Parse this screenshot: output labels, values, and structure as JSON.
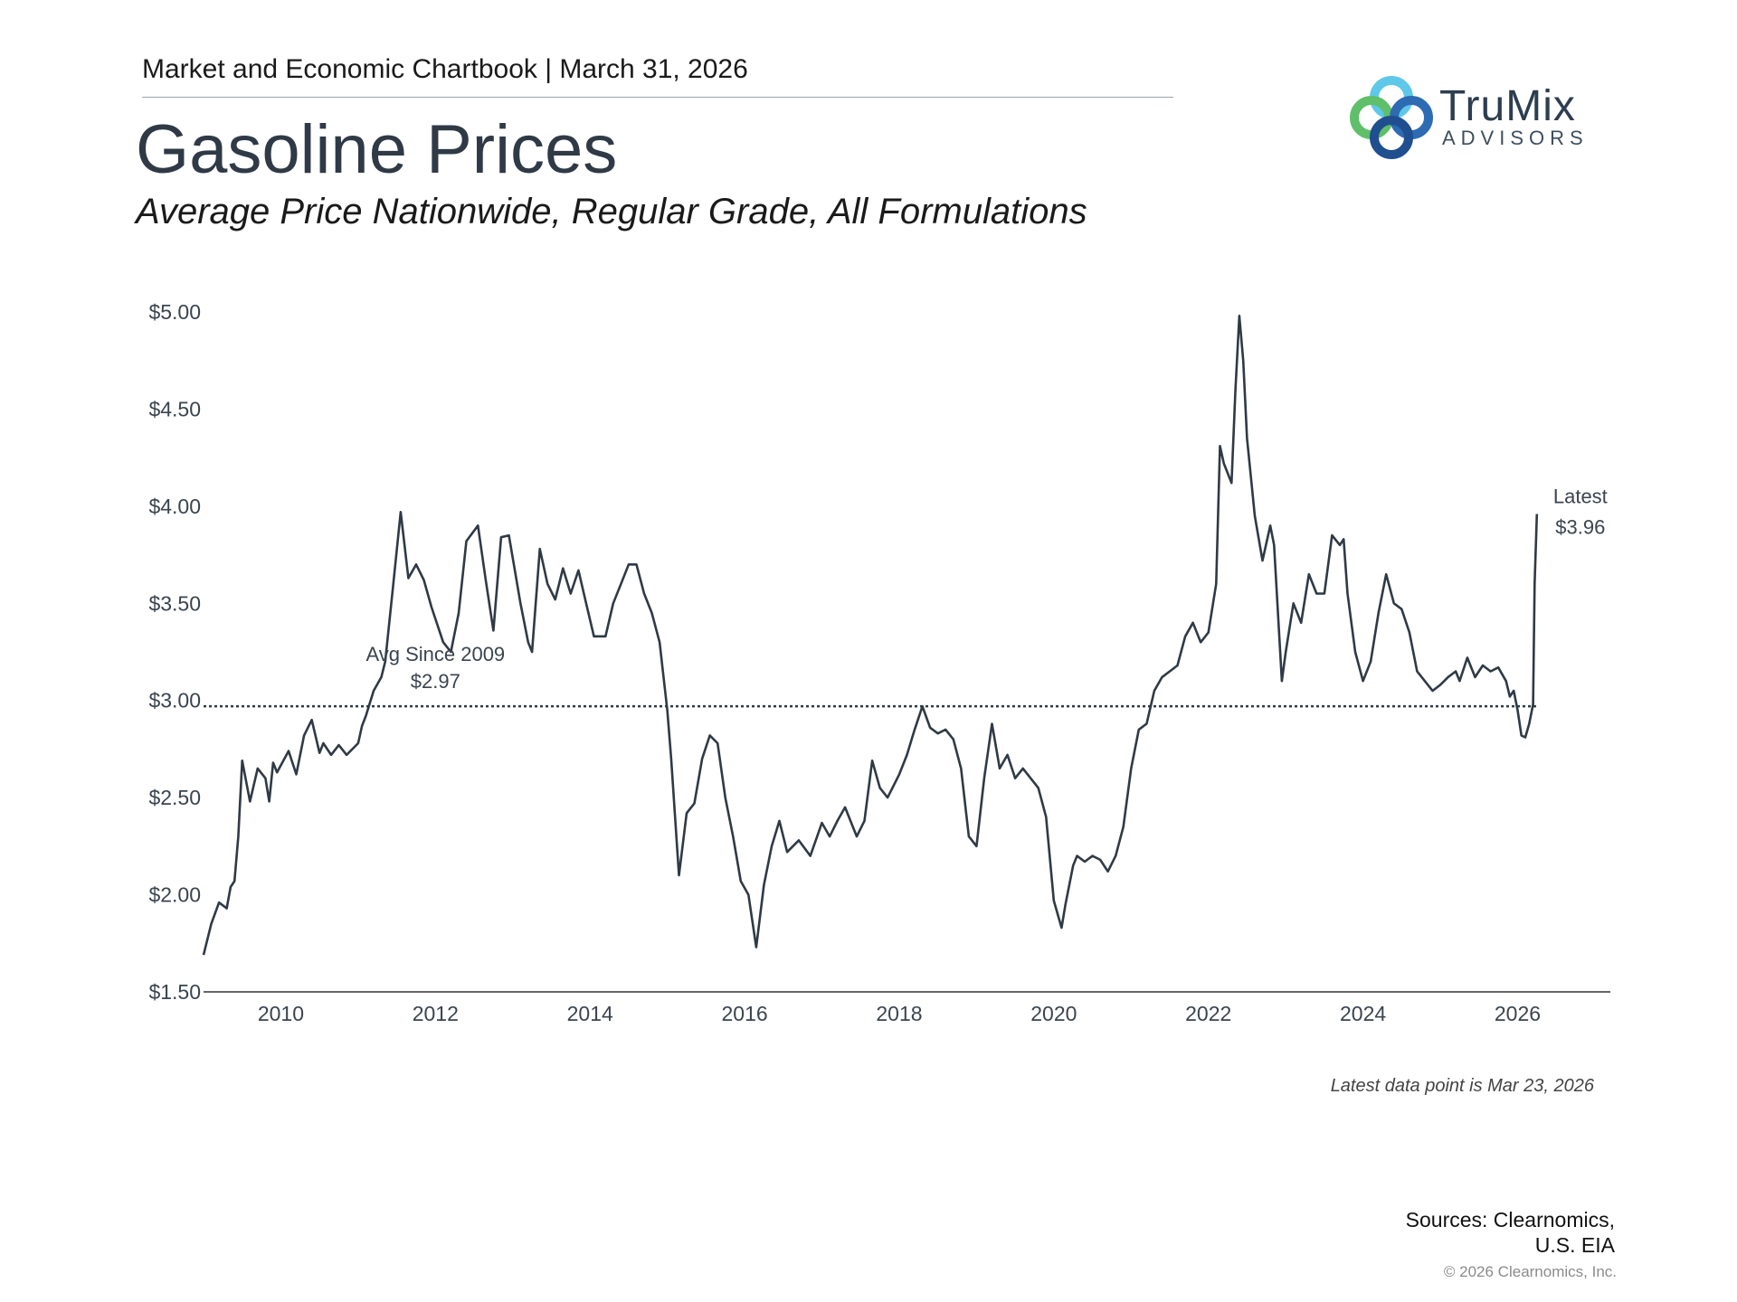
{
  "header": {
    "chartbook": "Market and Economic Chartbook | March 31, 2026",
    "title": "Gasoline Prices",
    "subtitle": "Average Price Nationwide, Regular Grade, All Formulations"
  },
  "logo": {
    "name": "TruMix",
    "sub": "ADVISORS"
  },
  "footer": {
    "latest_note": "Latest data point is Mar 23, 2026",
    "sources_line1": "Sources: Clearnomics,",
    "sources_line2": "U.S. EIA",
    "copyright": "© 2026 Clearnomics, Inc."
  },
  "colors": {
    "line": "#2f3a46",
    "axis": "#333333",
    "avg_line": "#2f3a46",
    "text": "#3a4450"
  },
  "chart_data": {
    "type": "line",
    "title": "Gasoline Prices",
    "subtitle": "Average Price Nationwide, Regular Grade, All Formulations",
    "xlabel": "",
    "ylabel": "",
    "xlim": [
      2009.0,
      2027.2
    ],
    "ylim": [
      1.5,
      5.0
    ],
    "x_ticks": [
      2010,
      2012,
      2014,
      2016,
      2018,
      2020,
      2022,
      2024,
      2026
    ],
    "y_ticks": [
      1.5,
      2.0,
      2.5,
      3.0,
      3.5,
      4.0,
      4.5,
      5.0
    ],
    "y_tick_labels": [
      "$1.50",
      "$2.00",
      "$2.50",
      "$3.00",
      "$3.50",
      "$4.00",
      "$4.50",
      "$5.00"
    ],
    "grid": false,
    "average": {
      "value": 2.97,
      "label_line1": "Avg Since 2009",
      "label_line2": "$2.97",
      "style": "dotted"
    },
    "latest": {
      "value": 3.96,
      "label_line1": "Latest",
      "label_line2": "$3.96"
    },
    "series": [
      {
        "x": [
          2009.0,
          2009.1,
          2009.2,
          2009.3,
          2009.35,
          2009.4,
          2009.45,
          2009.5,
          2009.6,
          2009.7,
          2009.8,
          2009.85,
          2009.9,
          2009.95,
          2010.1,
          2010.2,
          2010.3,
          2010.4,
          2010.5,
          2010.55,
          2010.65,
          2010.75,
          2010.85,
          2011.0,
          2011.05,
          2011.1,
          2011.2,
          2011.3,
          2011.35,
          2011.45,
          2011.55,
          2011.65,
          2011.75,
          2011.85,
          2011.95,
          2012.1,
          2012.2,
          2012.3,
          2012.4,
          2012.55,
          2012.65,
          2012.75,
          2012.85,
          2012.95,
          2013.1,
          2013.2,
          2013.25,
          2013.35,
          2013.45,
          2013.55,
          2013.65,
          2013.75,
          2013.85,
          2013.95,
          2014.05,
          2014.2,
          2014.3,
          2014.4,
          2014.5,
          2014.6,
          2014.7,
          2014.8,
          2014.9,
          2015.0,
          2015.05,
          2015.15,
          2015.25,
          2015.35,
          2015.45,
          2015.55,
          2015.65,
          2015.75,
          2015.85,
          2015.95,
          2016.05,
          2016.15,
          2016.25,
          2016.35,
          2016.45,
          2016.55,
          2016.7,
          2016.85,
          2017.0,
          2017.1,
          2017.2,
          2017.3,
          2017.45,
          2017.55,
          2017.65,
          2017.75,
          2017.85,
          2018.0,
          2018.1,
          2018.2,
          2018.3,
          2018.4,
          2018.5,
          2018.6,
          2018.7,
          2018.8,
          2018.9,
          2019.0,
          2019.1,
          2019.2,
          2019.3,
          2019.4,
          2019.5,
          2019.6,
          2019.7,
          2019.8,
          2019.9,
          2020.0,
          2020.1,
          2020.15,
          2020.25,
          2020.3,
          2020.4,
          2020.5,
          2020.6,
          2020.7,
          2020.8,
          2020.9,
          2021.0,
          2021.1,
          2021.2,
          2021.3,
          2021.4,
          2021.5,
          2021.6,
          2021.7,
          2021.8,
          2021.9,
          2022.0,
          2022.1,
          2022.15,
          2022.2,
          2022.3,
          2022.35,
          2022.4,
          2022.45,
          2022.5,
          2022.6,
          2022.7,
          2022.8,
          2022.85,
          2022.9,
          2022.95,
          2023.0,
          2023.1,
          2023.2,
          2023.3,
          2023.4,
          2023.5,
          2023.6,
          2023.7,
          2023.75,
          2023.8,
          2023.9,
          2024.0,
          2024.1,
          2024.2,
          2024.3,
          2024.4,
          2024.5,
          2024.6,
          2024.7,
          2024.8,
          2024.9,
          2025.0,
          2025.1,
          2025.2,
          2025.25,
          2025.35,
          2025.45,
          2025.55,
          2025.65,
          2025.75,
          2025.85,
          2025.9,
          2025.95,
          2026.0,
          2026.05,
          2026.1,
          2026.15,
          2026.2,
          2026.22,
          2026.25
        ],
        "y": [
          1.69,
          1.85,
          1.96,
          1.93,
          2.04,
          2.07,
          2.3,
          2.69,
          2.48,
          2.65,
          2.6,
          2.48,
          2.68,
          2.63,
          2.74,
          2.62,
          2.82,
          2.9,
          2.73,
          2.78,
          2.72,
          2.77,
          2.72,
          2.78,
          2.87,
          2.92,
          3.05,
          3.12,
          3.2,
          3.58,
          3.97,
          3.63,
          3.7,
          3.62,
          3.48,
          3.3,
          3.25,
          3.45,
          3.82,
          3.9,
          3.62,
          3.36,
          3.84,
          3.85,
          3.5,
          3.3,
          3.25,
          3.78,
          3.6,
          3.52,
          3.68,
          3.55,
          3.67,
          3.5,
          3.33,
          3.33,
          3.5,
          3.6,
          3.7,
          3.7,
          3.55,
          3.45,
          3.3,
          2.95,
          2.7,
          2.1,
          2.42,
          2.47,
          2.7,
          2.82,
          2.78,
          2.5,
          2.3,
          2.07,
          2.0,
          1.73,
          2.05,
          2.25,
          2.38,
          2.22,
          2.28,
          2.2,
          2.37,
          2.3,
          2.38,
          2.45,
          2.3,
          2.38,
          2.69,
          2.55,
          2.5,
          2.62,
          2.72,
          2.85,
          2.97,
          2.86,
          2.83,
          2.85,
          2.8,
          2.65,
          2.3,
          2.25,
          2.6,
          2.88,
          2.65,
          2.72,
          2.6,
          2.65,
          2.6,
          2.55,
          2.4,
          1.97,
          1.83,
          1.95,
          2.15,
          2.2,
          2.17,
          2.2,
          2.18,
          2.12,
          2.2,
          2.35,
          2.65,
          2.85,
          2.88,
          3.05,
          3.12,
          3.15,
          3.18,
          3.33,
          3.4,
          3.3,
          3.35,
          3.6,
          4.31,
          4.22,
          4.12,
          4.6,
          4.98,
          4.75,
          4.35,
          3.95,
          3.72,
          3.9,
          3.8,
          3.45,
          3.1,
          3.25,
          3.5,
          3.4,
          3.65,
          3.55,
          3.55,
          3.85,
          3.8,
          3.83,
          3.55,
          3.25,
          3.1,
          3.2,
          3.45,
          3.65,
          3.5,
          3.47,
          3.35,
          3.15,
          3.1,
          3.05,
          3.08,
          3.12,
          3.15,
          3.1,
          3.22,
          3.12,
          3.18,
          3.15,
          3.17,
          3.1,
          3.02,
          3.05,
          2.95,
          2.82,
          2.81,
          2.88,
          2.98,
          3.6,
          3.96
        ]
      }
    ]
  }
}
